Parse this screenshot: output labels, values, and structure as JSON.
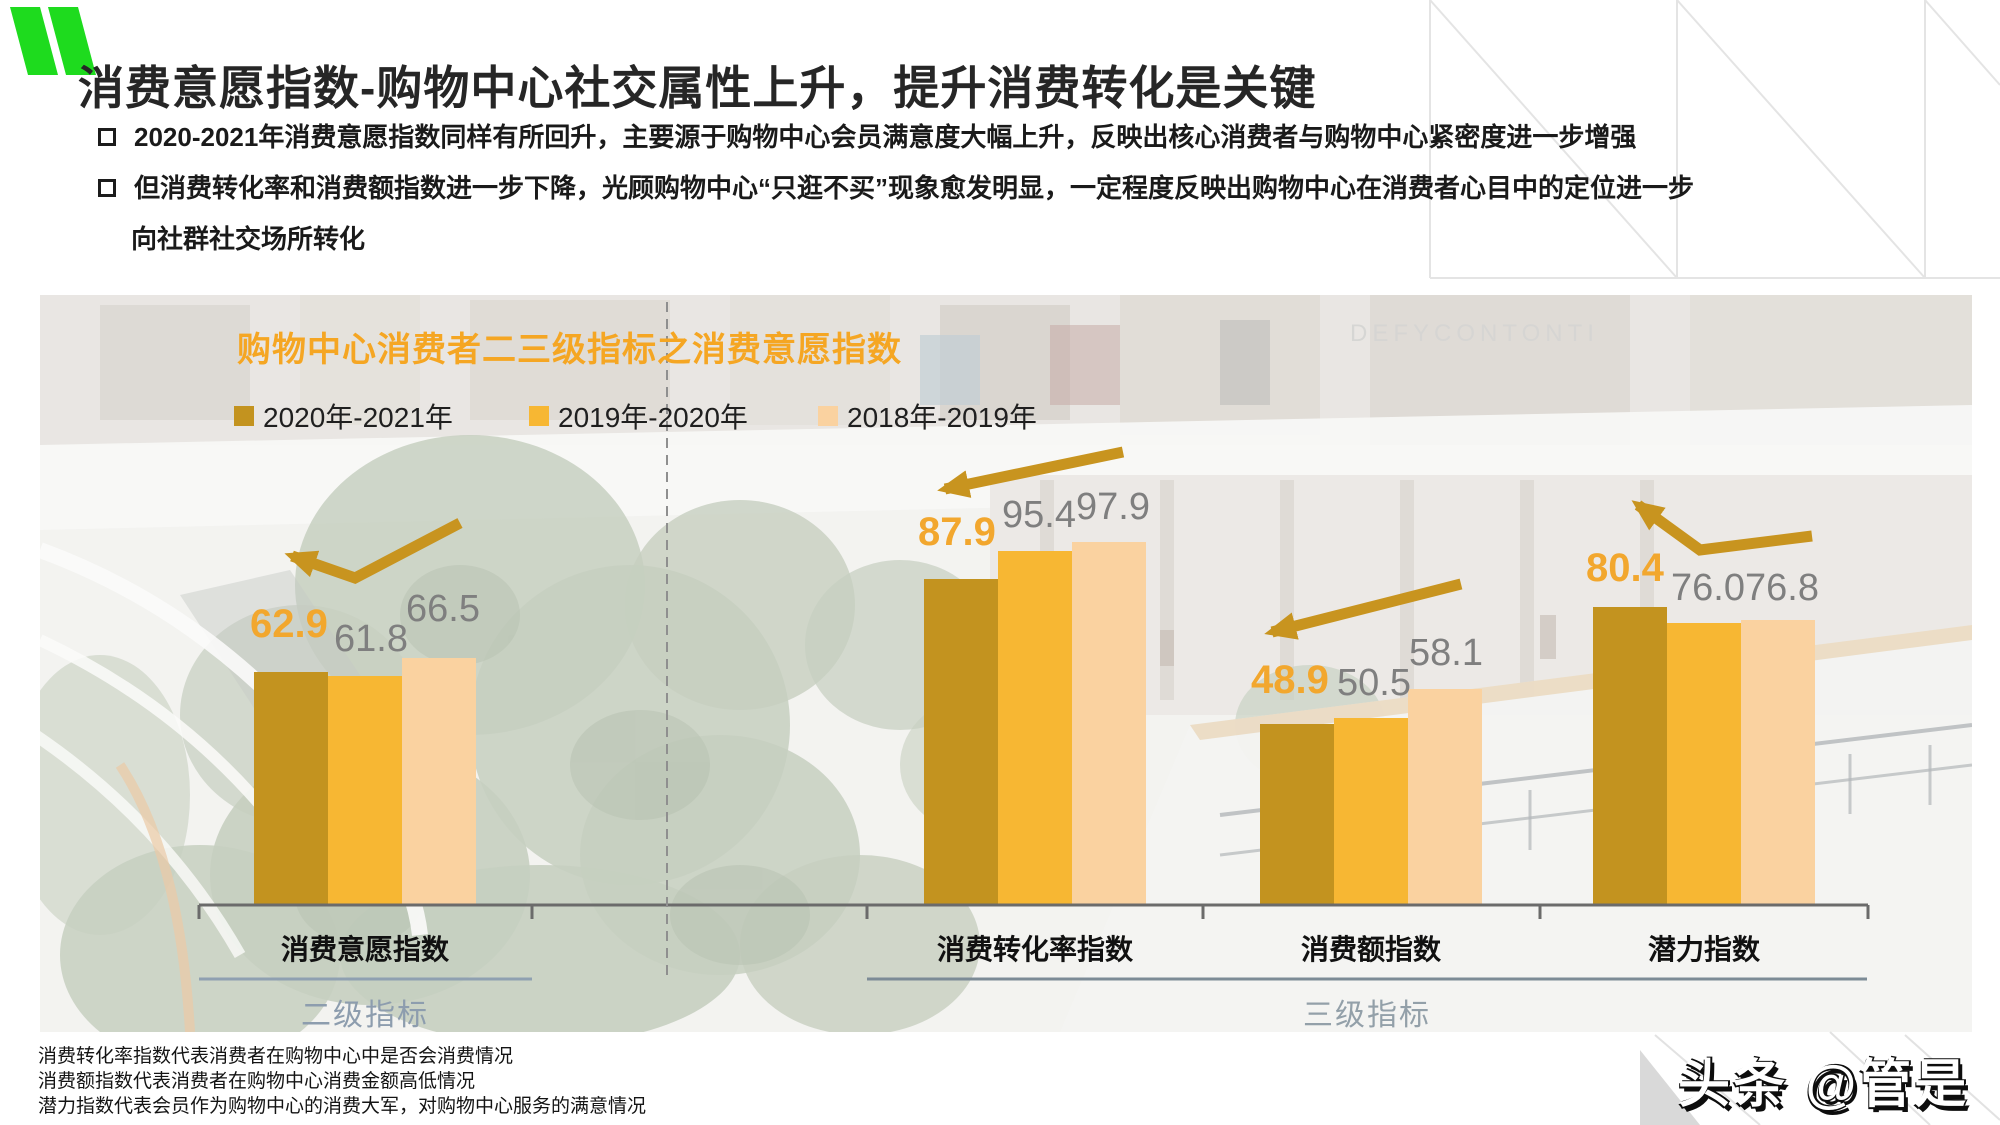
{
  "slide": {
    "title": "消费意愿指数-购物中心社交属性上升，提升消费转化是关键",
    "bullets": [
      "2020-2021年消费意愿指数同样有所回升，主要源于购物中心会员满意度大幅上升，反映出核心消费者与购物中心紧密度进一步增强",
      "但消费转化率和消费额指数进一步下降，光顾购物中心“只逛不买”现象愈发明显，一定程度反映出购物中心在消费者心目中的定位进一步",
      "向社群社交场所转化"
    ]
  },
  "chart": {
    "title": "购物中心消费者二三级指标之消费意愿指数",
    "section_left": "二级指标",
    "section_right": "三级指标",
    "photo_sign_text": "DEFYCONTONTI"
  },
  "chart_data": {
    "type": "bar",
    "title": "购物中心消费者二三级指标之消费意愿指数",
    "categories": [
      "消费意愿指数",
      "消费转化率指数",
      "消费额指数",
      "潜力指数"
    ],
    "series": [
      {
        "name": "2020年-2021年",
        "color": "#C3931F",
        "values": [
          62.9,
          87.9,
          48.9,
          80.4
        ]
      },
      {
        "name": "2019年-2020年",
        "color": "#F7B733",
        "values": [
          61.8,
          95.4,
          50.5,
          76.0
        ]
      },
      {
        "name": "2018年-2019年",
        "color": "#FAD2A0",
        "values": [
          66.5,
          97.9,
          58.1,
          76.8
        ]
      }
    ],
    "ylim": [
      0,
      100
    ],
    "grid": false,
    "legend_position": "top-left",
    "value_labels": "shown above bars, 2020-2021 values highlighted orange",
    "sections": {
      "二级指标": [
        "消费意愿指数"
      ],
      "三级指标": [
        "消费转化率指数",
        "消费额指数",
        "潜力指数"
      ]
    },
    "annotations": "gold trend arrows pointing from older-year values toward the 2020-2021 value in each group"
  },
  "footer": {
    "notes": [
      "消费转化率指数代表消费者在购物中心中是否会消费情况",
      "消费额指数代表消费者在购物中心消费金额高低情况",
      "潜力指数代表会员作为购物中心的消费大军，对购物中心服务的满意情况"
    ]
  },
  "watermark": {
    "text": "头条 @管是"
  },
  "colors": {
    "logo_green": "#1EDB1E",
    "accent_orange": "#F5A623",
    "value_highlight": "#F2A72E",
    "value_gray": "#7F7F7F",
    "arrow_gold": "#C8941F",
    "section_label": "#8D9DAE",
    "series": [
      "#C3931F",
      "#F7B733",
      "#FAD2A0"
    ]
  }
}
